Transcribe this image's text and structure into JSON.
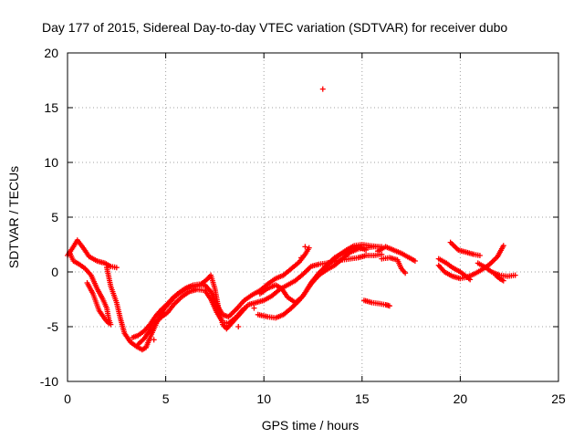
{
  "chart_data": {
    "type": "scatter",
    "title": "Day 177 of 2015, Sidereal Day-to-day VTEC variation (SDTVAR) for receiver dubo",
    "xlabel": "GPS time / hours",
    "ylabel": "SDTVAR / TECUs",
    "xlim": [
      0,
      25
    ],
    "ylim": [
      -10,
      20
    ],
    "xticks": [
      0,
      5,
      10,
      15,
      20,
      25
    ],
    "yticks": [
      -10,
      -5,
      0,
      5,
      10,
      15,
      20
    ],
    "grid": true,
    "marker": "plus",
    "color": "#ff0000",
    "series": [
      {
        "name": "SDTVAR",
        "tracks": [
          [
            [
              0.0,
              1.5
            ],
            [
              0.3,
              2.3
            ],
            [
              0.5,
              2.9
            ],
            [
              0.8,
              2.2
            ],
            [
              1.1,
              1.4
            ],
            [
              1.5,
              1.0
            ],
            [
              1.9,
              0.8
            ],
            [
              2.2,
              0.5
            ],
            [
              2.5,
              0.4
            ]
          ],
          [
            [
              0.1,
              1.8
            ],
            [
              0.3,
              1.0
            ],
            [
              0.6,
              0.7
            ],
            [
              0.9,
              0.3
            ],
            [
              1.2,
              -0.3
            ],
            [
              1.5,
              -1.5
            ],
            [
              1.8,
              -2.5
            ],
            [
              2.0,
              -3.3
            ],
            [
              2.1,
              -4.3
            ],
            [
              2.2,
              -4.8
            ]
          ],
          [
            [
              1.0,
              -1.0
            ],
            [
              1.3,
              -2.0
            ],
            [
              1.6,
              -3.5
            ],
            [
              1.9,
              -4.3
            ],
            [
              2.1,
              -4.7
            ]
          ],
          [
            [
              2.0,
              0.4
            ],
            [
              2.2,
              -1.3
            ],
            [
              2.5,
              -2.8
            ],
            [
              2.7,
              -4.3
            ],
            [
              2.9,
              -5.6
            ],
            [
              3.2,
              -6.4
            ],
            [
              3.5,
              -6.8
            ],
            [
              3.8,
              -7.1
            ],
            [
              4.0,
              -6.9
            ],
            [
              4.2,
              -6.0
            ],
            [
              4.4,
              -5.2
            ],
            [
              4.6,
              -4.4
            ],
            [
              4.8,
              -3.7
            ],
            [
              5.0,
              -3.2
            ],
            [
              5.3,
              -2.6
            ],
            [
              5.6,
              -2.0
            ],
            [
              6.0,
              -1.5
            ],
            [
              6.4,
              -1.2
            ],
            [
              6.8,
              -1.1
            ],
            [
              7.1,
              -0.7
            ],
            [
              7.3,
              -0.3
            ],
            [
              7.5,
              -1.5
            ],
            [
              7.7,
              -3.4
            ],
            [
              7.9,
              -4.8
            ],
            [
              8.1,
              -5.2
            ],
            [
              8.4,
              -4.6
            ],
            [
              8.8,
              -3.8
            ],
            [
              9.2,
              -3.0
            ],
            [
              9.6,
              -2.8
            ],
            [
              10.0,
              -2.6
            ],
            [
              10.4,
              -2.2
            ],
            [
              10.8,
              -1.6
            ],
            [
              11.2,
              -1.2
            ],
            [
              11.6,
              -0.8
            ],
            [
              12.0,
              -0.2
            ],
            [
              12.4,
              0.5
            ],
            [
              12.8,
              0.7
            ],
            [
              13.2,
              0.8
            ],
            [
              13.6,
              1.0
            ],
            [
              14.0,
              1.1
            ],
            [
              14.4,
              1.2
            ],
            [
              14.8,
              1.3
            ],
            [
              15.2,
              1.5
            ],
            [
              15.6,
              1.5
            ],
            [
              16.0,
              1.6
            ]
          ],
          [
            [
              3.3,
              -6.0
            ],
            [
              3.6,
              -5.8
            ],
            [
              3.9,
              -5.4
            ],
            [
              4.2,
              -4.8
            ],
            [
              4.5,
              -4.0
            ],
            [
              4.8,
              -3.4
            ],
            [
              5.1,
              -2.9
            ],
            [
              5.4,
              -2.3
            ],
            [
              5.8,
              -1.8
            ],
            [
              6.2,
              -1.4
            ],
            [
              6.6,
              -1.3
            ],
            [
              7.0,
              -1.2
            ],
            [
              7.3,
              -1.8
            ],
            [
              7.6,
              -3.0
            ],
            [
              7.9,
              -3.9
            ],
            [
              8.2,
              -4.1
            ],
            [
              8.6,
              -3.4
            ],
            [
              9.0,
              -2.6
            ],
            [
              9.4,
              -2.1
            ],
            [
              9.8,
              -1.7
            ],
            [
              10.2,
              -1.1
            ],
            [
              10.6,
              -0.6
            ],
            [
              11.0,
              -0.3
            ],
            [
              11.4,
              0.3
            ],
            [
              11.8,
              0.9
            ],
            [
              12.1,
              1.6
            ],
            [
              12.3,
              2.2
            ]
          ],
          [
            [
              3.6,
              -6.6
            ],
            [
              3.9,
              -6.1
            ],
            [
              4.2,
              -5.3
            ],
            [
              4.5,
              -4.6
            ],
            [
              4.8,
              -4.1
            ],
            [
              5.1,
              -3.7
            ],
            [
              5.4,
              -3.0
            ],
            [
              5.8,
              -2.3
            ],
            [
              6.2,
              -1.8
            ],
            [
              6.6,
              -1.6
            ],
            [
              7.0,
              -1.7
            ],
            [
              7.3,
              -2.5
            ],
            [
              7.6,
              -3.7
            ],
            [
              7.9,
              -4.6
            ],
            [
              8.2,
              -4.7
            ],
            [
              8.6,
              -4.1
            ],
            [
              9.0,
              -3.3
            ]
          ],
          [
            [
              9.7,
              -3.9
            ],
            [
              10.2,
              -4.1
            ],
            [
              10.6,
              -4.2
            ],
            [
              11.0,
              -3.9
            ],
            [
              11.4,
              -3.3
            ],
            [
              11.8,
              -2.6
            ],
            [
              12.1,
              -1.9
            ],
            [
              12.4,
              -1.1
            ],
            [
              12.8,
              -0.3
            ],
            [
              13.2,
              0.2
            ],
            [
              13.6,
              0.6
            ],
            [
              14.0,
              1.2
            ],
            [
              14.4,
              1.8
            ],
            [
              14.8,
              2.1
            ],
            [
              15.2,
              2.2
            ],
            [
              15.6,
              2.3
            ],
            [
              16.0,
              2.3
            ]
          ],
          [
            [
              9.8,
              -2.0
            ],
            [
              10.2,
              -1.5
            ],
            [
              10.6,
              -1.2
            ],
            [
              10.9,
              -1.5
            ],
            [
              11.2,
              -2.3
            ],
            [
              11.6,
              -2.8
            ],
            [
              12.0,
              -2.2
            ],
            [
              12.4,
              -1.0
            ],
            [
              12.8,
              -0.1
            ],
            [
              13.2,
              0.6
            ],
            [
              13.6,
              1.3
            ],
            [
              14.0,
              1.7
            ],
            [
              14.4,
              2.1
            ],
            [
              14.8,
              2.3
            ],
            [
              15.2,
              2.0
            ]
          ],
          [
            [
              13.0,
              0.2
            ],
            [
              13.4,
              0.9
            ],
            [
              13.8,
              1.5
            ],
            [
              14.2,
              2.0
            ],
            [
              14.6,
              2.4
            ],
            [
              15.0,
              2.5
            ],
            [
              15.4,
              2.4
            ],
            [
              15.8,
              2.3
            ]
          ],
          [
            [
              15.8,
              1.9
            ],
            [
              16.2,
              2.3
            ],
            [
              16.6,
              2.0
            ],
            [
              17.0,
              1.7
            ],
            [
              17.4,
              1.3
            ],
            [
              17.7,
              1.0
            ]
          ],
          [
            [
              16.0,
              1.2
            ],
            [
              16.4,
              1.3
            ],
            [
              16.8,
              1.1
            ],
            [
              17.0,
              0.3
            ],
            [
              17.2,
              -0.1
            ]
          ],
          [
            [
              15.1,
              -2.6
            ],
            [
              15.5,
              -2.8
            ],
            [
              15.9,
              -2.9
            ],
            [
              16.2,
              -3.0
            ],
            [
              16.4,
              -3.1
            ]
          ],
          [
            [
              18.9,
              0.6
            ],
            [
              19.2,
              0.0
            ],
            [
              19.6,
              -0.4
            ],
            [
              20.0,
              -0.6
            ],
            [
              20.3,
              -0.5
            ],
            [
              20.7,
              -0.2
            ],
            [
              21.1,
              0.2
            ],
            [
              21.5,
              0.7
            ],
            [
              21.9,
              1.4
            ],
            [
              22.2,
              2.4
            ]
          ],
          [
            [
              18.9,
              1.2
            ],
            [
              19.3,
              0.8
            ],
            [
              19.6,
              0.4
            ],
            [
              20.0,
              0.0
            ],
            [
              20.3,
              -0.4
            ],
            [
              20.5,
              -0.7
            ]
          ],
          [
            [
              19.5,
              2.7
            ],
            [
              19.9,
              2.0
            ],
            [
              20.3,
              1.8
            ],
            [
              20.7,
              1.6
            ],
            [
              21.0,
              1.5
            ]
          ],
          [
            [
              20.9,
              0.8
            ],
            [
              21.3,
              0.4
            ],
            [
              21.6,
              0.0
            ],
            [
              22.0,
              -0.3
            ],
            [
              22.4,
              -0.4
            ],
            [
              22.8,
              -0.3
            ]
          ],
          [
            [
              21.8,
              -0.3
            ],
            [
              22.0,
              -0.6
            ],
            [
              22.2,
              -0.8
            ]
          ]
        ],
        "points": [
          [
            13.0,
            16.7
          ],
          [
            12.1,
            2.3
          ],
          [
            11.9,
            1.3
          ],
          [
            9.5,
            -3.3
          ],
          [
            8.7,
            -5.0
          ],
          [
            4.4,
            -6.2
          ]
        ]
      }
    ]
  }
}
